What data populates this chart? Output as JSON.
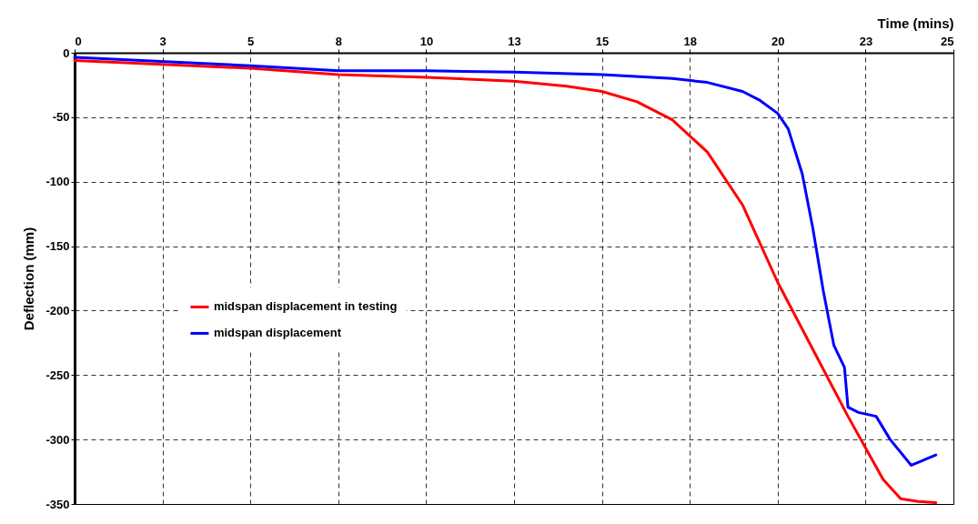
{
  "chart_data": {
    "type": "line",
    "xlabel": "Time (mins)",
    "ylabel": "Deflection (mm)",
    "xlim": [
      0,
      25
    ],
    "ylim": [
      -350,
      0
    ],
    "xticks": [
      0,
      {
        "value": 2.5,
        "label": "3"
      },
      5,
      {
        "value": 7.5,
        "label": "8"
      },
      10,
      {
        "value": 12.5,
        "label": "13"
      },
      15,
      {
        "value": 17.5,
        "label": "18"
      },
      20,
      {
        "value": 22.5,
        "label": "23"
      },
      25
    ],
    "yticks": [
      0,
      -50,
      -100,
      -150,
      -200,
      -250,
      -300,
      -350
    ],
    "grid": true,
    "legend": "left",
    "series": [
      {
        "name": "midspan displacement in testing",
        "color": "#ff0000",
        "x": [
          0,
          5,
          7.5,
          10,
          12.5,
          14,
          15,
          16,
          17,
          18,
          19,
          20,
          21,
          22,
          23,
          23.5,
          24,
          24.5
        ],
        "values": [
          -6,
          -12,
          -17,
          -19,
          -22,
          -26,
          -30,
          -38,
          -52,
          -77,
          -118,
          -178,
          -230,
          -282,
          -331,
          -346,
          -348,
          -349
        ]
      },
      {
        "name": "midspan displacement",
        "color": "#0000ff",
        "x": [
          0,
          5,
          7.5,
          10,
          12.5,
          15,
          17,
          18,
          19,
          19.5,
          20,
          20.3,
          20.7,
          21,
          21.3,
          21.6,
          21.9,
          22,
          22.3,
          22.8,
          23.2,
          23.8,
          24.5
        ],
        "values": [
          -3.5,
          -10,
          -14,
          -14,
          -15,
          -17,
          -20,
          -23,
          -30,
          -37,
          -47,
          -59,
          -94,
          -136,
          -185,
          -227,
          -244,
          -275,
          -279,
          -282,
          -300,
          -320,
          -312
        ]
      }
    ]
  }
}
